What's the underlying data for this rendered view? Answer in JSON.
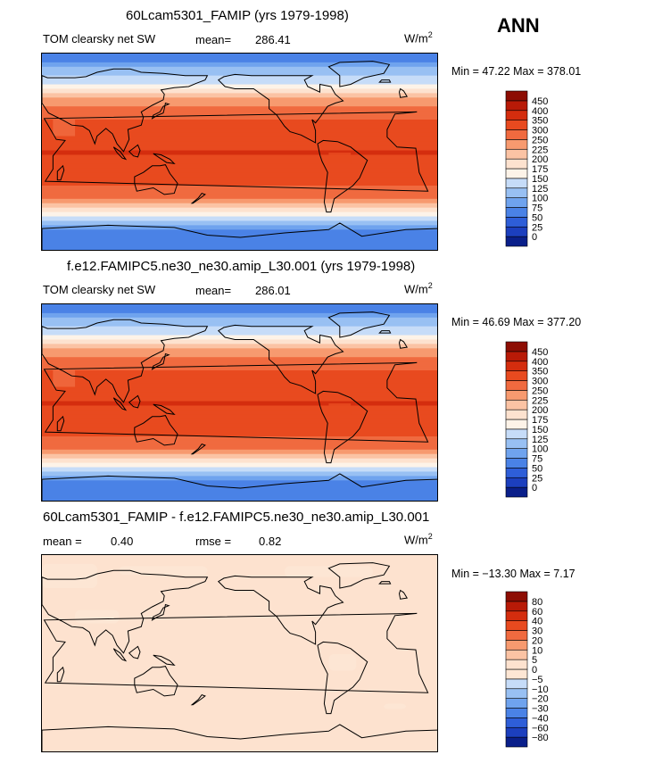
{
  "season": "ANN",
  "units": "W/m",
  "units_exp": "2",
  "panels": [
    {
      "title": "60Lcam5301_FAMIP (yrs 1979-1998)",
      "variable": "TOM clearsky net SW",
      "mean_label": "mean=",
      "mean": "286.41",
      "minmax": "Min =  47.22 Max = 378.01"
    },
    {
      "title": "f.e12.FAMIPC5.ne30_ne30.amip_L30.001 (yrs 1979-1998)",
      "variable": "TOM clearsky net SW",
      "mean_label": "mean=",
      "mean": "286.01",
      "minmax": "Min =  46.69 Max = 377.20"
    },
    {
      "title": "60Lcam5301_FAMIP - f.e12.FAMIPC5.ne30_ne30.amip_L30.001",
      "mean_label": "mean =",
      "mean": "0.40",
      "rmse_label": "rmse =",
      "rmse": "0.82",
      "minmax": "Min = −13.30 Max =   7.17"
    }
  ],
  "chart_data": [
    {
      "type": "heatmap",
      "title": "60Lcam5301_FAMIP (yrs 1979-1998)",
      "variable": "TOM clearsky net SW",
      "units": "W/m2",
      "mean": 286.41,
      "min": 47.22,
      "max": 378.01,
      "levels": [
        0,
        25,
        50,
        75,
        100,
        125,
        150,
        175,
        200,
        225,
        250,
        300,
        350,
        400,
        450
      ],
      "colors": [
        "#0a1f8a",
        "#1c3fbe",
        "#2e5ed8",
        "#4a82e6",
        "#6fa3ee",
        "#98c0f3",
        "#c6dcf8",
        "#fdf3e8",
        "#fde2cf",
        "#fbc3a4",
        "#f79a6f",
        "#f06a3f",
        "#e84a1f",
        "#d42d0e",
        "#b81a07",
        "#8d0d03"
      ],
      "zonal_band_values": [
        {
          "lat": 85,
          "value": 70
        },
        {
          "lat": 65,
          "value": 140
        },
        {
          "lat": 50,
          "value": 220
        },
        {
          "lat": 35,
          "value": 290
        },
        {
          "lat": 20,
          "value": 330
        },
        {
          "lat": 0,
          "value": 350
        },
        {
          "lat": -20,
          "value": 330
        },
        {
          "lat": -35,
          "value": 280
        },
        {
          "lat": -50,
          "value": 190
        },
        {
          "lat": -60,
          "value": 130
        },
        {
          "lat": -75,
          "value": 60
        }
      ]
    },
    {
      "type": "heatmap",
      "title": "f.e12.FAMIPC5.ne30_ne30.amip_L30.001 (yrs 1979-1998)",
      "variable": "TOM clearsky net SW",
      "units": "W/m2",
      "mean": 286.01,
      "min": 46.69,
      "max": 377.2,
      "levels": [
        0,
        25,
        50,
        75,
        100,
        125,
        150,
        175,
        200,
        225,
        250,
        300,
        350,
        400,
        450
      ],
      "colors": [
        "#0a1f8a",
        "#1c3fbe",
        "#2e5ed8",
        "#4a82e6",
        "#6fa3ee",
        "#98c0f3",
        "#c6dcf8",
        "#fdf3e8",
        "#fde2cf",
        "#fbc3a4",
        "#f79a6f",
        "#f06a3f",
        "#e84a1f",
        "#d42d0e",
        "#b81a07",
        "#8d0d03"
      ],
      "zonal_band_values": [
        {
          "lat": 85,
          "value": 70
        },
        {
          "lat": 65,
          "value": 140
        },
        {
          "lat": 50,
          "value": 220
        },
        {
          "lat": 35,
          "value": 290
        },
        {
          "lat": 20,
          "value": 330
        },
        {
          "lat": 0,
          "value": 350
        },
        {
          "lat": -20,
          "value": 330
        },
        {
          "lat": -35,
          "value": 280
        },
        {
          "lat": -50,
          "value": 190
        },
        {
          "lat": -60,
          "value": 130
        },
        {
          "lat": -75,
          "value": 60
        }
      ]
    },
    {
      "type": "heatmap",
      "title": "60Lcam5301_FAMIP - f.e12.FAMIPC5.ne30_ne30.amip_L30.001",
      "units": "W/m2",
      "mean": 0.4,
      "rmse": 0.82,
      "min": -13.3,
      "max": 7.17,
      "levels": [
        -80,
        -60,
        -40,
        -30,
        -20,
        -10,
        -5,
        0,
        5,
        10,
        20,
        30,
        40,
        60,
        80
      ],
      "colors": [
        "#0a1f8a",
        "#1c3fbe",
        "#2e5ed8",
        "#4a82e6",
        "#6fa3ee",
        "#98c0f3",
        "#c6dcf8",
        "#fde6d4",
        "#fde2cf",
        "#fbc3a4",
        "#f79a6f",
        "#f06a3f",
        "#e84a1f",
        "#d42d0e",
        "#b81a07",
        "#8d0d03"
      ],
      "background_value": 2,
      "patch_value": -3
    }
  ]
}
